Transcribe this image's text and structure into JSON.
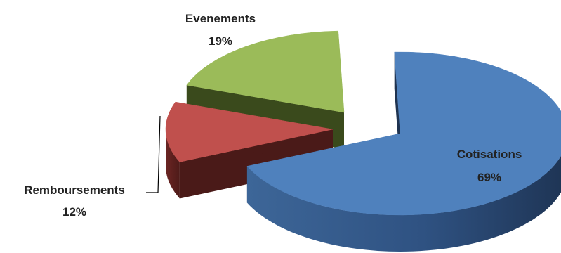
{
  "chart_data": {
    "type": "pie",
    "style": "3d exploded",
    "legend": "none",
    "slices": [
      {
        "label": "Cotisations",
        "percent_label": "69%",
        "value": 69,
        "color": "#4f81bd",
        "side_color": "#2b4a73",
        "dark_color": "#1f3350"
      },
      {
        "label": "Remboursements",
        "percent_label": "12%",
        "value": 12,
        "color": "#c0504d",
        "side_color": "#5e211f",
        "dark_color": "#4a1a18"
      },
      {
        "label": "Evenements",
        "percent_label": "19%",
        "value": 19,
        "color": "#9bbb59",
        "side_color": "#4a5a24",
        "dark_color": "#3a4a1c"
      }
    ]
  }
}
